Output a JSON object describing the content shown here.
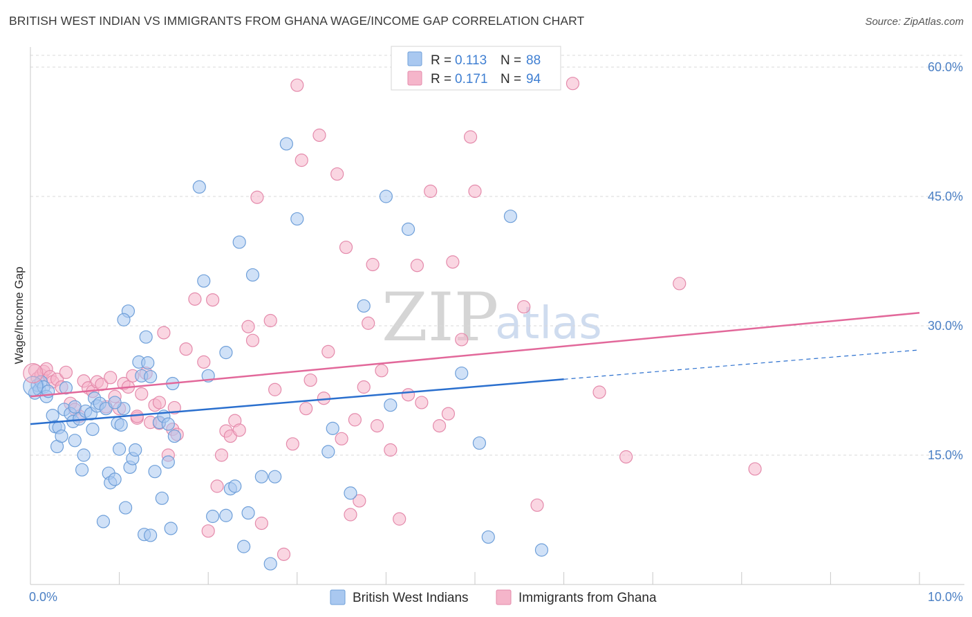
{
  "header": {
    "title": "BRITISH WEST INDIAN VS IMMIGRANTS FROM GHANA WAGE/INCOME GAP CORRELATION CHART",
    "source": "Source: ZipAtlas.com"
  },
  "watermark": {
    "part1": "ZIP",
    "part2": "atlas"
  },
  "colors": {
    "blue_fill": "#a9c8f0",
    "blue_stroke": "#6e9fd9",
    "blue_line": "#2a6fce",
    "pink_fill": "#f5b5ca",
    "pink_stroke": "#e48aab",
    "pink_line": "#e2689a",
    "axis_text": "#4a7fc4",
    "grid": "#d9d9d9"
  },
  "top_legend": [
    {
      "r_label": "R = ",
      "r_value": "0.113",
      "n_label": "N = ",
      "n_value": "88"
    },
    {
      "r_label": "R = ",
      "r_value": "0.171",
      "n_label": "N = ",
      "n_value": "94"
    }
  ],
  "bottom_legend": [
    "British West Indians",
    "Immigrants from Ghana"
  ],
  "chart_data": {
    "type": "scatter",
    "title": "BRITISH WEST INDIAN VS IMMIGRANTS FROM GHANA WAGE/INCOME GAP CORRELATION CHART",
    "xlabel": "",
    "ylabel": "Wage/Income Gap",
    "xlim": [
      0,
      10
    ],
    "ylim": [
      0,
      60
    ],
    "x_tick_labels": [
      "0.0%",
      "10.0%"
    ],
    "y_ticks": [
      15,
      30,
      45,
      60
    ],
    "y_tick_labels": [
      "15.0%",
      "30.0%",
      "45.0%",
      "60.0%"
    ],
    "grid": true,
    "legend_position": "top-center",
    "series": [
      {
        "name": "British West Indians",
        "r": 0.113,
        "n": 88,
        "trend": {
          "x0": 0.0,
          "y0": 18.6,
          "x1": 6.0,
          "y1": 23.8,
          "dashed_x1": 10.0,
          "dashed_y1": 27.2
        },
        "points": [
          [
            0.05,
            22.2
          ],
          [
            0.08,
            23.1
          ],
          [
            0.1,
            22.6
          ],
          [
            0.12,
            23.5
          ],
          [
            0.15,
            22.9
          ],
          [
            0.18,
            21.8
          ],
          [
            0.2,
            22.4
          ],
          [
            0.25,
            19.6
          ],
          [
            0.28,
            18.3
          ],
          [
            0.3,
            16.0
          ],
          [
            0.32,
            18.2
          ],
          [
            0.35,
            17.2
          ],
          [
            0.38,
            20.3
          ],
          [
            0.4,
            22.8
          ],
          [
            0.45,
            19.8
          ],
          [
            0.48,
            18.9
          ],
          [
            0.5,
            20.6
          ],
          [
            0.55,
            19.2
          ],
          [
            0.58,
            13.3
          ],
          [
            0.6,
            15.0
          ],
          [
            0.62,
            20.1
          ],
          [
            0.68,
            19.8
          ],
          [
            0.7,
            18.0
          ],
          [
            0.72,
            21.6
          ],
          [
            0.75,
            20.7
          ],
          [
            0.78,
            21.0
          ],
          [
            0.82,
            7.3
          ],
          [
            0.85,
            20.4
          ],
          [
            0.88,
            12.9
          ],
          [
            0.9,
            11.8
          ],
          [
            0.95,
            12.2
          ],
          [
            0.98,
            18.7
          ],
          [
            1.0,
            15.7
          ],
          [
            1.02,
            18.5
          ],
          [
            1.05,
            20.4
          ],
          [
            1.07,
            8.9
          ],
          [
            1.1,
            31.7
          ],
          [
            1.12,
            13.6
          ],
          [
            1.15,
            14.6
          ],
          [
            1.18,
            15.6
          ],
          [
            1.22,
            25.8
          ],
          [
            1.25,
            24.2
          ],
          [
            1.28,
            5.8
          ],
          [
            1.32,
            25.7
          ],
          [
            1.35,
            5.7
          ],
          [
            1.4,
            13.1
          ],
          [
            1.45,
            18.8
          ],
          [
            1.48,
            10.0
          ],
          [
            1.55,
            14.2
          ],
          [
            1.58,
            6.5
          ],
          [
            1.62,
            17.2
          ],
          [
            1.9,
            46.1
          ],
          [
            1.95,
            35.2
          ],
          [
            2.05,
            7.9
          ],
          [
            2.2,
            8.0
          ],
          [
            2.25,
            11.1
          ],
          [
            2.3,
            11.4
          ],
          [
            2.35,
            39.7
          ],
          [
            2.4,
            4.4
          ],
          [
            2.45,
            8.3
          ],
          [
            2.5,
            35.9
          ],
          [
            2.6,
            12.5
          ],
          [
            2.75,
            12.5
          ],
          [
            2.7,
            2.4
          ],
          [
            2.88,
            51.1
          ],
          [
            2.0,
            24.2
          ],
          [
            2.2,
            26.9
          ],
          [
            1.6,
            23.3
          ],
          [
            1.35,
            24.1
          ],
          [
            1.05,
            30.7
          ],
          [
            1.3,
            28.7
          ],
          [
            3.0,
            42.4
          ],
          [
            3.35,
            15.4
          ],
          [
            3.4,
            18.1
          ],
          [
            3.6,
            10.6
          ],
          [
            3.75,
            32.3
          ],
          [
            4.0,
            45.0
          ],
          [
            4.05,
            20.8
          ],
          [
            4.25,
            41.2
          ],
          [
            4.85,
            24.5
          ],
          [
            5.05,
            16.4
          ],
          [
            5.15,
            5.5
          ],
          [
            5.4,
            42.7
          ],
          [
            5.75,
            4.0
          ],
          [
            0.5,
            16.7
          ],
          [
            0.95,
            21.1
          ],
          [
            1.5,
            19.5
          ],
          [
            1.55,
            18.6
          ]
        ]
      },
      {
        "name": "Immigrants from Ghana",
        "r": 0.171,
        "n": 94,
        "trend": {
          "x0": 0.0,
          "y0": 21.8,
          "x1": 10.0,
          "y1": 31.5
        },
        "points": [
          [
            0.05,
            24.8
          ],
          [
            0.08,
            23.9
          ],
          [
            0.12,
            24.3
          ],
          [
            0.15,
            24.7
          ],
          [
            0.18,
            25.0
          ],
          [
            0.22,
            24.1
          ],
          [
            0.25,
            23.5
          ],
          [
            0.3,
            23.8
          ],
          [
            0.35,
            22.9
          ],
          [
            0.4,
            24.6
          ],
          [
            0.45,
            21.0
          ],
          [
            0.5,
            20.3
          ],
          [
            0.55,
            19.5
          ],
          [
            0.6,
            23.6
          ],
          [
            0.65,
            22.8
          ],
          [
            0.7,
            22.4
          ],
          [
            0.75,
            23.5
          ],
          [
            0.8,
            23.2
          ],
          [
            0.85,
            20.6
          ],
          [
            0.9,
            24.0
          ],
          [
            0.95,
            21.8
          ],
          [
            1.0,
            20.4
          ],
          [
            1.05,
            23.3
          ],
          [
            1.1,
            22.9
          ],
          [
            1.15,
            24.2
          ],
          [
            1.2,
            19.3
          ],
          [
            1.25,
            22.1
          ],
          [
            1.3,
            24.5
          ],
          [
            1.35,
            18.8
          ],
          [
            1.4,
            20.8
          ],
          [
            1.45,
            21.1
          ],
          [
            1.5,
            29.2
          ],
          [
            1.55,
            15.0
          ],
          [
            1.6,
            18.0
          ],
          [
            1.65,
            17.4
          ],
          [
            1.75,
            27.3
          ],
          [
            1.85,
            33.1
          ],
          [
            1.95,
            25.8
          ],
          [
            2.0,
            6.2
          ],
          [
            2.05,
            33.0
          ],
          [
            2.1,
            11.4
          ],
          [
            2.15,
            15.0
          ],
          [
            2.2,
            17.8
          ],
          [
            2.25,
            17.2
          ],
          [
            2.3,
            19.0
          ],
          [
            2.35,
            17.9
          ],
          [
            2.45,
            29.9
          ],
          [
            2.5,
            28.3
          ],
          [
            2.55,
            44.9
          ],
          [
            2.6,
            7.1
          ],
          [
            2.7,
            30.6
          ],
          [
            2.75,
            22.6
          ],
          [
            2.85,
            3.5
          ],
          [
            2.95,
            16.3
          ],
          [
            3.0,
            57.9
          ],
          [
            3.05,
            49.2
          ],
          [
            3.1,
            20.4
          ],
          [
            3.15,
            23.7
          ],
          [
            3.25,
            52.1
          ],
          [
            3.35,
            27.0
          ],
          [
            3.45,
            47.6
          ],
          [
            3.5,
            16.9
          ],
          [
            3.55,
            39.1
          ],
          [
            3.6,
            8.1
          ],
          [
            3.65,
            19.1
          ],
          [
            3.7,
            9.7
          ],
          [
            3.75,
            22.9
          ],
          [
            3.8,
            30.3
          ],
          [
            3.85,
            37.1
          ],
          [
            3.9,
            18.4
          ],
          [
            3.95,
            24.8
          ],
          [
            4.05,
            15.6
          ],
          [
            4.15,
            7.6
          ],
          [
            4.25,
            22.0
          ],
          [
            4.35,
            37.0
          ],
          [
            4.4,
            21.1
          ],
          [
            4.5,
            45.6
          ],
          [
            4.6,
            18.4
          ],
          [
            4.7,
            19.8
          ],
          [
            4.75,
            37.4
          ],
          [
            4.85,
            28.4
          ],
          [
            4.95,
            51.9
          ],
          [
            5.0,
            45.6
          ],
          [
            5.55,
            32.2
          ],
          [
            5.7,
            9.2
          ],
          [
            6.1,
            58.1
          ],
          [
            6.4,
            22.3
          ],
          [
            6.7,
            14.8
          ],
          [
            7.3,
            34.9
          ],
          [
            8.15,
            13.4
          ],
          [
            1.62,
            20.5
          ],
          [
            1.45,
            18.7
          ],
          [
            1.2,
            19.5
          ],
          [
            3.3,
            21.6
          ]
        ]
      }
    ]
  }
}
